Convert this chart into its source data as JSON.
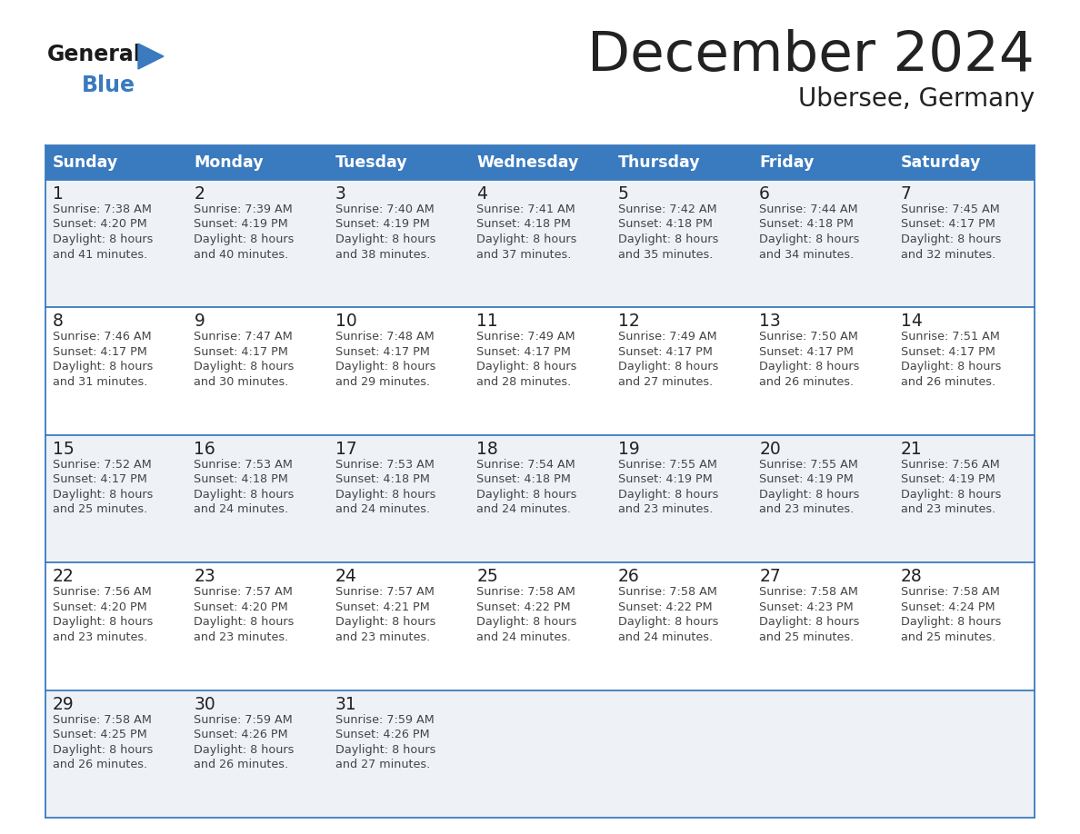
{
  "title": "December 2024",
  "subtitle": "Ubersee, Germany",
  "header_color": "#3a7abf",
  "header_text_color": "#ffffff",
  "day_names": [
    "Sunday",
    "Monday",
    "Tuesday",
    "Wednesday",
    "Thursday",
    "Friday",
    "Saturday"
  ],
  "bg_color": "#ffffff",
  "cell_bg_even": "#eef2f7",
  "cell_bg_odd": "#ffffff",
  "border_color": "#3a7abf",
  "day_num_color": "#222222",
  "text_color": "#444444",
  "logo_general_color": "#1a1a1a",
  "logo_blue_color": "#3a7abf",
  "weeks": [
    [
      {
        "day": 1,
        "sunrise": "7:38 AM",
        "sunset": "4:20 PM",
        "daylight_min": "41"
      },
      {
        "day": 2,
        "sunrise": "7:39 AM",
        "sunset": "4:19 PM",
        "daylight_min": "40"
      },
      {
        "day": 3,
        "sunrise": "7:40 AM",
        "sunset": "4:19 PM",
        "daylight_min": "38"
      },
      {
        "day": 4,
        "sunrise": "7:41 AM",
        "sunset": "4:18 PM",
        "daylight_min": "37"
      },
      {
        "day": 5,
        "sunrise": "7:42 AM",
        "sunset": "4:18 PM",
        "daylight_min": "35"
      },
      {
        "day": 6,
        "sunrise": "7:44 AM",
        "sunset": "4:18 PM",
        "daylight_min": "34"
      },
      {
        "day": 7,
        "sunrise": "7:45 AM",
        "sunset": "4:17 PM",
        "daylight_min": "32"
      }
    ],
    [
      {
        "day": 8,
        "sunrise": "7:46 AM",
        "sunset": "4:17 PM",
        "daylight_min": "31"
      },
      {
        "day": 9,
        "sunrise": "7:47 AM",
        "sunset": "4:17 PM",
        "daylight_min": "30"
      },
      {
        "day": 10,
        "sunrise": "7:48 AM",
        "sunset": "4:17 PM",
        "daylight_min": "29"
      },
      {
        "day": 11,
        "sunrise": "7:49 AM",
        "sunset": "4:17 PM",
        "daylight_min": "28"
      },
      {
        "day": 12,
        "sunrise": "7:49 AM",
        "sunset": "4:17 PM",
        "daylight_min": "27"
      },
      {
        "day": 13,
        "sunrise": "7:50 AM",
        "sunset": "4:17 PM",
        "daylight_min": "26"
      },
      {
        "day": 14,
        "sunrise": "7:51 AM",
        "sunset": "4:17 PM",
        "daylight_min": "26"
      }
    ],
    [
      {
        "day": 15,
        "sunrise": "7:52 AM",
        "sunset": "4:17 PM",
        "daylight_min": "25"
      },
      {
        "day": 16,
        "sunrise": "7:53 AM",
        "sunset": "4:18 PM",
        "daylight_min": "24"
      },
      {
        "day": 17,
        "sunrise": "7:53 AM",
        "sunset": "4:18 PM",
        "daylight_min": "24"
      },
      {
        "day": 18,
        "sunrise": "7:54 AM",
        "sunset": "4:18 PM",
        "daylight_min": "24"
      },
      {
        "day": 19,
        "sunrise": "7:55 AM",
        "sunset": "4:19 PM",
        "daylight_min": "23"
      },
      {
        "day": 20,
        "sunrise": "7:55 AM",
        "sunset": "4:19 PM",
        "daylight_min": "23"
      },
      {
        "day": 21,
        "sunrise": "7:56 AM",
        "sunset": "4:19 PM",
        "daylight_min": "23"
      }
    ],
    [
      {
        "day": 22,
        "sunrise": "7:56 AM",
        "sunset": "4:20 PM",
        "daylight_min": "23"
      },
      {
        "day": 23,
        "sunrise": "7:57 AM",
        "sunset": "4:20 PM",
        "daylight_min": "23"
      },
      {
        "day": 24,
        "sunrise": "7:57 AM",
        "sunset": "4:21 PM",
        "daylight_min": "23"
      },
      {
        "day": 25,
        "sunrise": "7:58 AM",
        "sunset": "4:22 PM",
        "daylight_min": "24"
      },
      {
        "day": 26,
        "sunrise": "7:58 AM",
        "sunset": "4:22 PM",
        "daylight_min": "24"
      },
      {
        "day": 27,
        "sunrise": "7:58 AM",
        "sunset": "4:23 PM",
        "daylight_min": "25"
      },
      {
        "day": 28,
        "sunrise": "7:58 AM",
        "sunset": "4:24 PM",
        "daylight_min": "25"
      }
    ],
    [
      {
        "day": 29,
        "sunrise": "7:58 AM",
        "sunset": "4:25 PM",
        "daylight_min": "26"
      },
      {
        "day": 30,
        "sunrise": "7:59 AM",
        "sunset": "4:26 PM",
        "daylight_min": "26"
      },
      {
        "day": 31,
        "sunrise": "7:59 AM",
        "sunset": "4:26 PM",
        "daylight_min": "27"
      },
      null,
      null,
      null,
      null
    ]
  ]
}
